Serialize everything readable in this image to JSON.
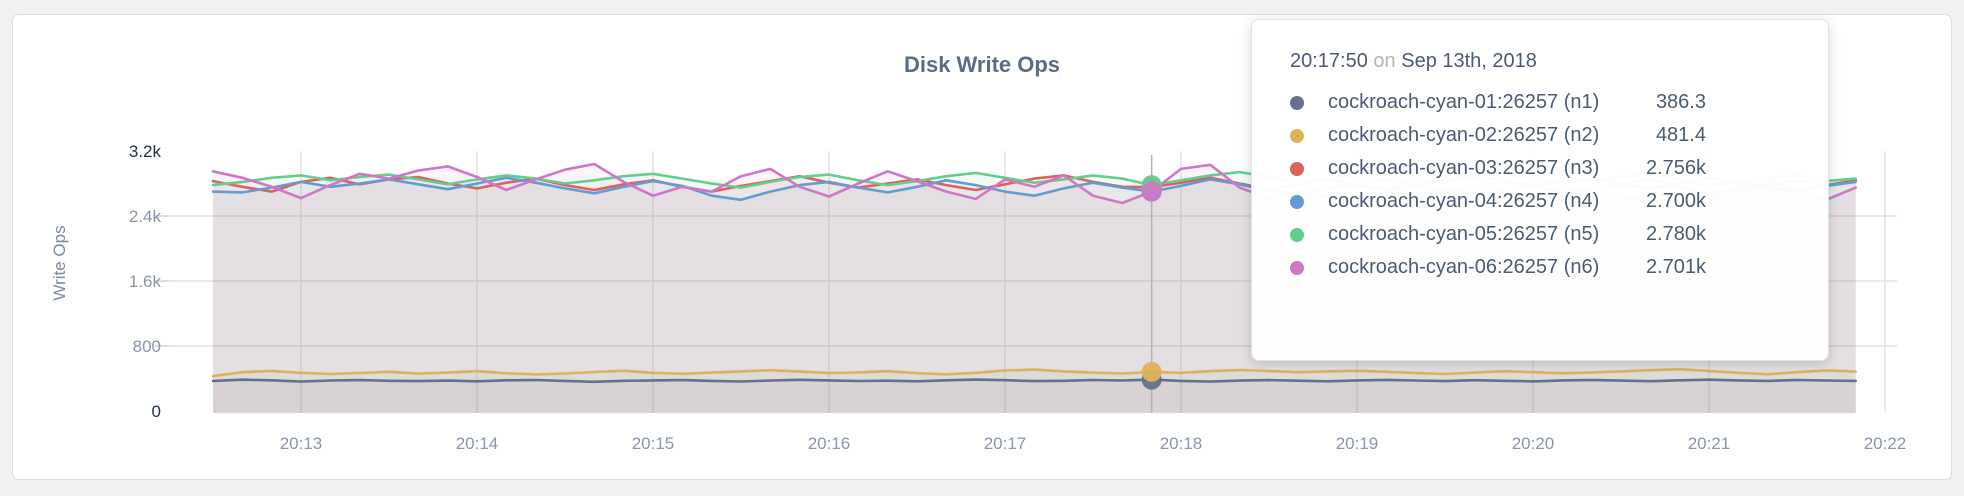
{
  "chart_data": {
    "type": "line",
    "title": "Disk Write Ops",
    "ylabel": "Write Ops",
    "ylim": [
      0,
      3200
    ],
    "grid": true,
    "x_start": "20:12:30",
    "x_step_seconds": 10,
    "x_ticks": [
      "20:13",
      "20:14",
      "20:15",
      "20:16",
      "20:17",
      "20:18",
      "20:19",
      "20:20",
      "20:21",
      "20:22"
    ],
    "y_ticks": [
      {
        "label": "3.2k",
        "value": 3200,
        "color": "#22304c"
      },
      {
        "label": "2.4k",
        "value": 2400,
        "color": "#8b95a9"
      },
      {
        "label": "1.6k",
        "value": 1600,
        "color": "#8b95a9"
      },
      {
        "label": "800",
        "value": 800,
        "color": "#8b95a9"
      },
      {
        "label": "0",
        "value": 0,
        "color": "#22304c"
      }
    ],
    "highlight": {
      "time": "20:17:50",
      "index": 32
    },
    "series": [
      {
        "name": "cockroach-cyan-01:26257 (n1)",
        "color": "#64718c",
        "values": [
          370,
          385,
          378,
          362,
          375,
          380,
          372,
          368,
          374,
          366,
          378,
          382,
          370,
          360,
          372,
          376,
          380,
          371,
          363,
          375,
          384,
          377,
          369,
          373,
          365,
          378,
          386,
          379,
          368,
          372,
          381,
          375,
          386.3,
          370,
          362,
          374,
          380,
          373,
          366,
          377,
          383,
          375,
          368,
          379,
          372,
          364,
          376,
          381,
          374,
          367,
          378,
          385,
          377,
          370,
          382,
          375,
          371
        ]
      },
      {
        "name": "cockroach-cyan-02:26257 (n2)",
        "color": "#ddb25b",
        "values": [
          430,
          478,
          492,
          470,
          455,
          468,
          482,
          460,
          472,
          490,
          465,
          450,
          462,
          480,
          495,
          470,
          458,
          472,
          488,
          502,
          485,
          468,
          475,
          490,
          465,
          452,
          470,
          498,
          510,
          488,
          472,
          462,
          481.4,
          470,
          490,
          505,
          492,
          478,
          488,
          495,
          482,
          468,
          455,
          472,
          490,
          478,
          465,
          475,
          488,
          502,
          515,
          492,
          470,
          452,
          478,
          500,
          485
        ]
      },
      {
        "name": "cockroach-cyan-03:26257 (n3)",
        "color": "#dd615e",
        "values": [
          2830,
          2760,
          2700,
          2820,
          2870,
          2790,
          2850,
          2880,
          2800,
          2740,
          2810,
          2860,
          2780,
          2720,
          2790,
          2840,
          2760,
          2700,
          2770,
          2830,
          2890,
          2810,
          2750,
          2800,
          2850,
          2780,
          2720,
          2790,
          2860,
          2900,
          2820,
          2760,
          2756,
          2810,
          2870,
          2800,
          2730,
          2790,
          2850,
          2780,
          2720,
          2780,
          2840,
          2900,
          2830,
          2770,
          2810,
          2860,
          2790,
          2740,
          2800,
          2870,
          2820,
          2750,
          2700,
          2780,
          2840
        ]
      },
      {
        "name": "cockroach-cyan-04:26257 (n4)",
        "color": "#639cd2",
        "values": [
          2700,
          2690,
          2750,
          2820,
          2760,
          2800,
          2850,
          2790,
          2730,
          2800,
          2870,
          2810,
          2740,
          2680,
          2760,
          2830,
          2770,
          2650,
          2600,
          2700,
          2780,
          2820,
          2750,
          2690,
          2760,
          2840,
          2780,
          2700,
          2650,
          2740,
          2810,
          2750,
          2700,
          2770,
          2850,
          2790,
          2710,
          2660,
          2740,
          2800,
          2860,
          2780,
          2700,
          2750,
          2830,
          2770,
          2690,
          2730,
          2800,
          2850,
          2760,
          2680,
          2720,
          2790,
          2840,
          2770,
          2820
        ]
      },
      {
        "name": "cockroach-cyan-05:26257 (n5)",
        "color": "#64ce8e",
        "values": [
          2780,
          2820,
          2870,
          2900,
          2840,
          2880,
          2910,
          2850,
          2790,
          2850,
          2900,
          2860,
          2800,
          2840,
          2890,
          2920,
          2860,
          2800,
          2750,
          2820,
          2880,
          2910,
          2840,
          2780,
          2830,
          2890,
          2930,
          2870,
          2810,
          2850,
          2900,
          2860,
          2780,
          2840,
          2900,
          2940,
          2880,
          2820,
          2860,
          2910,
          2850,
          2790,
          2830,
          2890,
          2920,
          2860,
          2800,
          2840,
          2880,
          2920,
          2850,
          2780,
          2820,
          2870,
          2900,
          2830,
          2860
        ]
      },
      {
        "name": "cockroach-cyan-06:26257 (n6)",
        "color": "#cf77c5",
        "values": [
          2950,
          2870,
          2760,
          2620,
          2780,
          2920,
          2860,
          2960,
          3010,
          2880,
          2720,
          2850,
          2970,
          3040,
          2820,
          2650,
          2760,
          2700,
          2890,
          2980,
          2760,
          2640,
          2800,
          2950,
          2830,
          2700,
          2610,
          2850,
          2760,
          2900,
          2650,
          2560,
          2701,
          2980,
          3030,
          2750,
          2620,
          2700,
          2640,
          2580,
          2700,
          2900,
          3050,
          2870,
          2680,
          2600,
          2760,
          2700,
          2640,
          2560,
          2500,
          2620,
          2760,
          2850,
          2700,
          2600,
          2750
        ]
      }
    ]
  },
  "tooltip": {
    "time": "20:17:50",
    "connector": "on",
    "date": "Sep 13th, 2018",
    "rows": [
      {
        "name": "cockroach-cyan-01:26257 (n1)",
        "value": "386.3",
        "color": "#64718c"
      },
      {
        "name": "cockroach-cyan-02:26257 (n2)",
        "value": "481.4",
        "color": "#ddb25b"
      },
      {
        "name": "cockroach-cyan-03:26257 (n3)",
        "value": "2.756k",
        "color": "#dd615e"
      },
      {
        "name": "cockroach-cyan-04:26257 (n4)",
        "value": "2.700k",
        "color": "#639cd2"
      },
      {
        "name": "cockroach-cyan-05:26257 (n5)",
        "value": "2.780k",
        "color": "#64ce8e"
      },
      {
        "name": "cockroach-cyan-06:26257 (n6)",
        "value": "2.701k",
        "color": "#cf77c5"
      }
    ]
  },
  "colors": {
    "grid": "#e2e2e2",
    "tick_dash": "#cccccc",
    "crosshair": "#b3b3b3",
    "x_label": "#8b95a9"
  }
}
